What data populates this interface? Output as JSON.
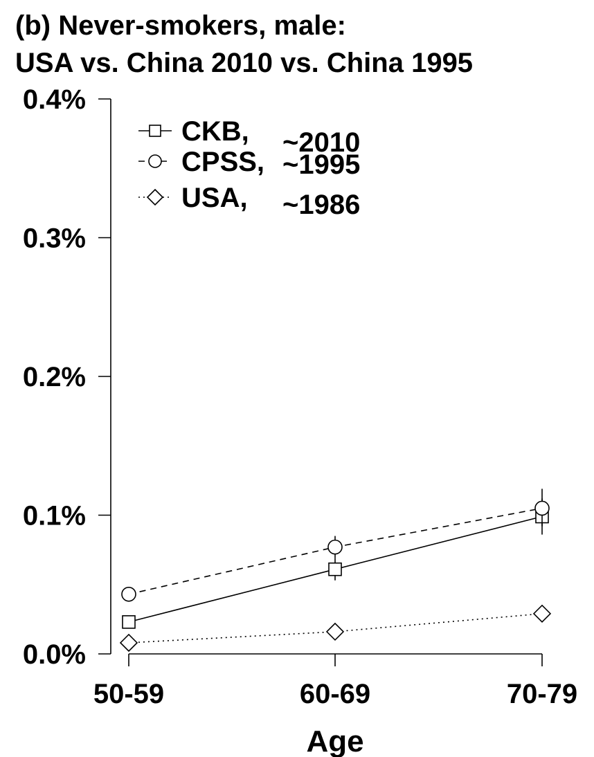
{
  "chart_data": {
    "type": "line",
    "title": "(b) Never-smokers, male:",
    "subtitle": "USA vs. China 2010 vs. China 1995",
    "xlabel": "Age",
    "ylabel": "",
    "categories": [
      "50-59",
      "60-69",
      "70-79"
    ],
    "ylim": [
      0,
      0.4
    ],
    "yticks": [
      0.0,
      0.1,
      0.2,
      0.3,
      0.4
    ],
    "ytick_labels": [
      "0.0%",
      "0.1%",
      "0.2%",
      "0.3%",
      "0.4%"
    ],
    "legend_position": "top-left",
    "grid": false,
    "series": [
      {
        "name": "CKB,",
        "period": "~2010",
        "marker": "square",
        "linestyle": "solid",
        "values": [
          0.023,
          0.061,
          0.099
        ],
        "error_low": [
          0.02,
          0.053,
          0.086
        ],
        "error_high": [
          0.026,
          0.069,
          0.112
        ]
      },
      {
        "name": "CPSS,",
        "period": "~1995",
        "marker": "circle",
        "linestyle": "dashed",
        "values": [
          0.043,
          0.077,
          0.105
        ],
        "error_low": [
          0.04,
          0.069,
          0.092
        ],
        "error_high": [
          0.046,
          0.085,
          0.119
        ]
      },
      {
        "name": "USA,",
        "period": "~1986",
        "marker": "diamond",
        "linestyle": "dotted",
        "values": [
          0.008,
          0.016,
          0.029
        ]
      }
    ]
  }
}
